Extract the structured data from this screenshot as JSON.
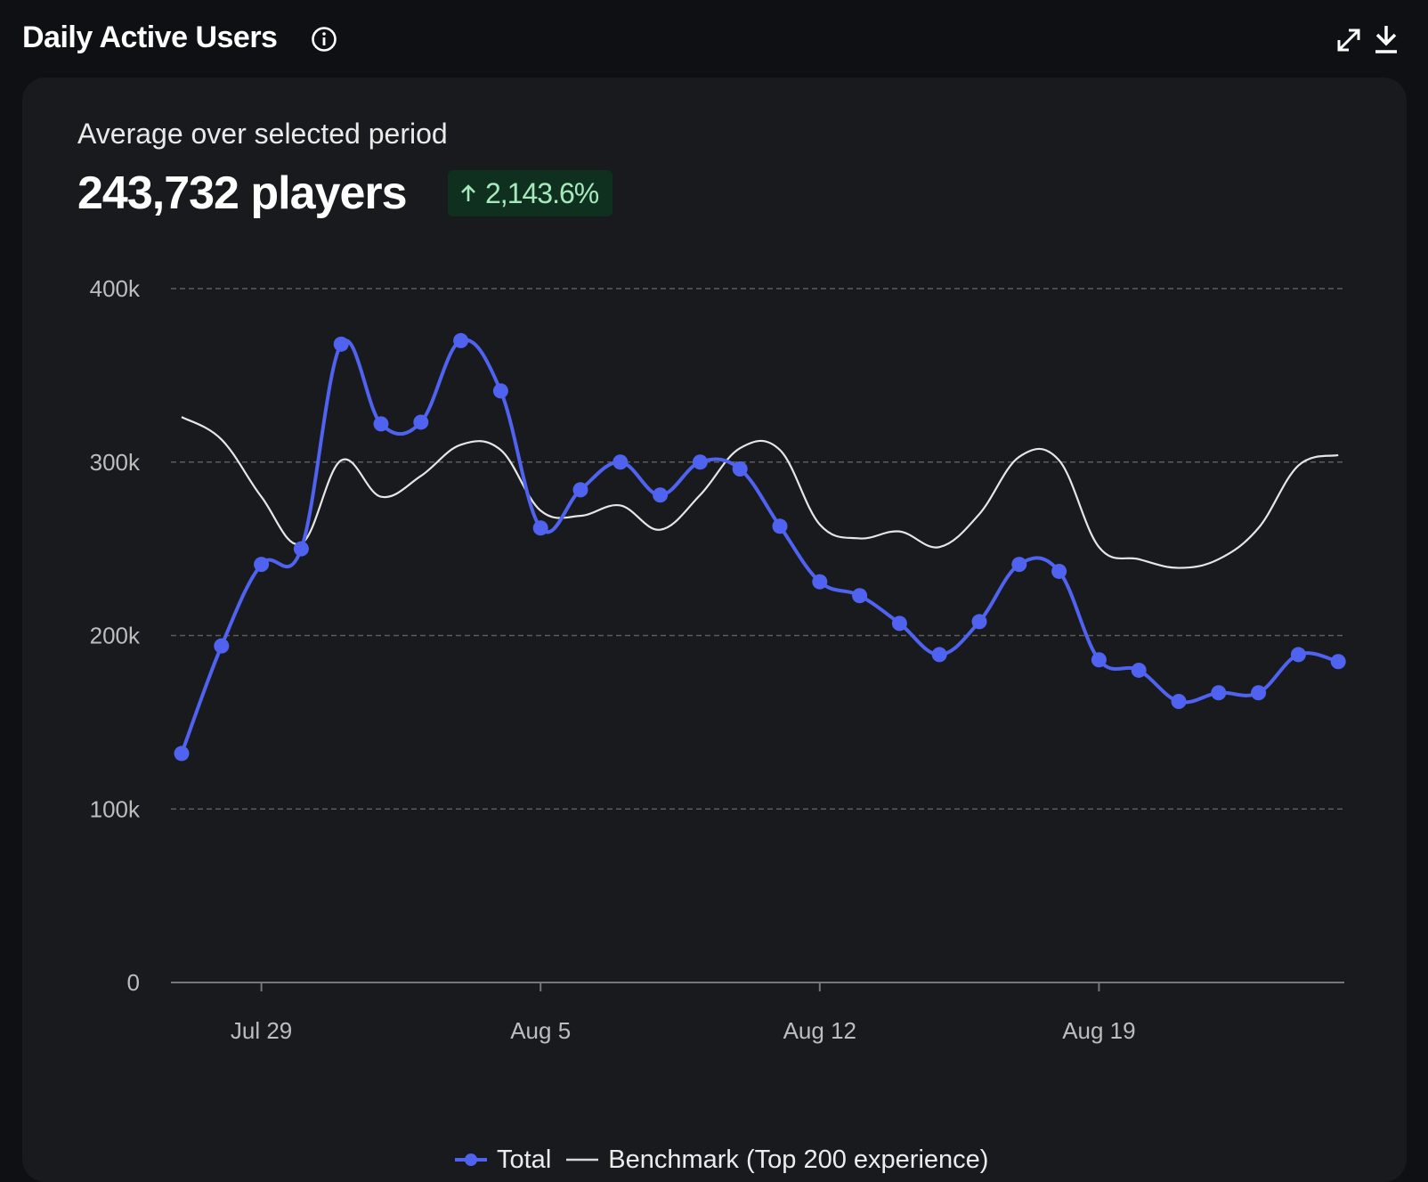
{
  "header": {
    "title": "Daily Active Users",
    "icons": [
      "info-icon",
      "expand-icon",
      "download-icon"
    ]
  },
  "summary": {
    "label": "Average over selected period",
    "value": "243,732 players",
    "change": "2,143.6%",
    "change_direction": "up"
  },
  "colors": {
    "background": "#0f1013",
    "card": "#191a1e",
    "total": "#4f63f0",
    "benchmark": "#e6e6e6",
    "badge_bg": "#10301f",
    "badge_text": "#a6e9bd"
  },
  "chart_data": {
    "type": "line",
    "x_ticks": [
      "Jul 29",
      "Aug 5",
      "Aug 12",
      "Aug 19"
    ],
    "x_tick_days": [
      2,
      9,
      16,
      23
    ],
    "ylim": [
      0,
      400000
    ],
    "y_ticks": [
      0,
      100000,
      200000,
      300000,
      400000
    ],
    "y_tick_labels": [
      "0",
      "100k",
      "200k",
      "300k",
      "400k"
    ],
    "grid": "horizontal dashed",
    "legend_position": "bottom-center",
    "series": [
      {
        "name": "Total",
        "style": "line-with-markers",
        "x": [
          "Jul 27",
          "Jul 28",
          "Jul 29",
          "Jul 30",
          "Jul 31",
          "Aug 1",
          "Aug 2",
          "Aug 3",
          "Aug 4",
          "Aug 5",
          "Aug 6",
          "Aug 7",
          "Aug 8",
          "Aug 9",
          "Aug 10",
          "Aug 11",
          "Aug 12",
          "Aug 13",
          "Aug 14",
          "Aug 15",
          "Aug 16",
          "Aug 17",
          "Aug 18",
          "Aug 19",
          "Aug 20",
          "Aug 21",
          "Aug 22",
          "Aug 23",
          "Aug 24",
          "Aug 25"
        ],
        "values": [
          132000,
          194000,
          241000,
          250000,
          368000,
          322000,
          323000,
          370000,
          341000,
          262000,
          284000,
          300000,
          281000,
          300000,
          296000,
          263000,
          231000,
          223000,
          207000,
          189000,
          208000,
          241000,
          237000,
          186000,
          180000,
          162000,
          167000,
          167000,
          189000,
          185000
        ]
      },
      {
        "name": "Benchmark (Top 200 experience)",
        "style": "line",
        "x": [
          "Jul 27",
          "Jul 28",
          "Jul 29",
          "Jul 30",
          "Jul 31",
          "Aug 1",
          "Aug 2",
          "Aug 3",
          "Aug 4",
          "Aug 5",
          "Aug 6",
          "Aug 7",
          "Aug 8",
          "Aug 9",
          "Aug 10",
          "Aug 11",
          "Aug 12",
          "Aug 13",
          "Aug 14",
          "Aug 15",
          "Aug 16",
          "Aug 17",
          "Aug 18",
          "Aug 19",
          "Aug 20",
          "Aug 21",
          "Aug 22",
          "Aug 23",
          "Aug 24",
          "Aug 25"
        ],
        "values": [
          326000,
          313000,
          280000,
          253000,
          301000,
          280000,
          292000,
          310000,
          307000,
          272000,
          269000,
          275000,
          261000,
          281000,
          308000,
          307000,
          264000,
          256000,
          260000,
          251000,
          270000,
          303000,
          301000,
          251000,
          244000,
          239000,
          244000,
          262000,
          298000,
          304000
        ]
      }
    ]
  }
}
